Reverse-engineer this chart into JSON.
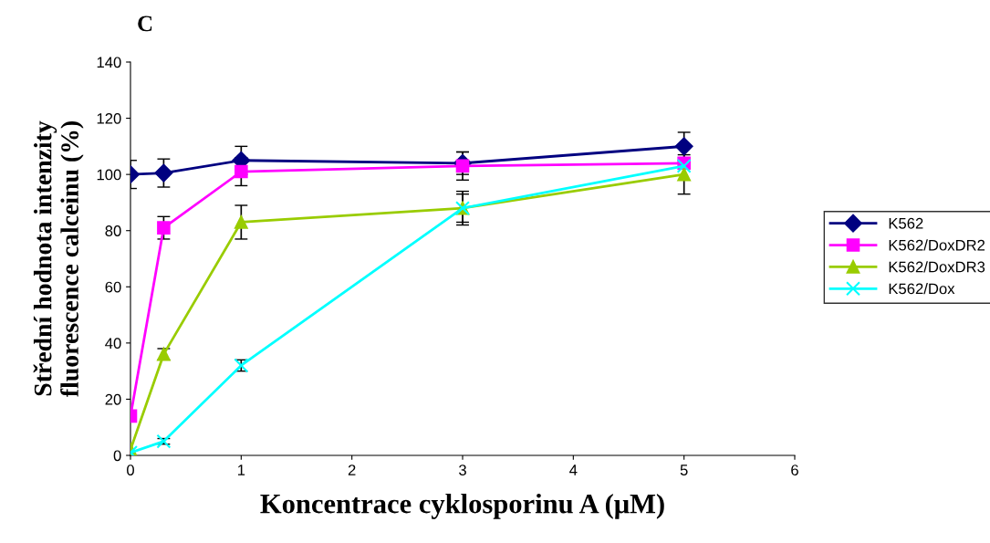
{
  "chart_data": {
    "type": "line",
    "title": "C",
    "xlabel": "Koncentrace cyklosporinu A (μM)",
    "ylabel": "Střední hodnota intenzity\nfluorescence calceinu (%)",
    "x": [
      0,
      0.3,
      1,
      3,
      5
    ],
    "series": [
      {
        "name": "K562",
        "color": "#000080",
        "marker": "diamond",
        "values": [
          100,
          100.5,
          105,
          104,
          110
        ],
        "errors": [
          5,
          5,
          5,
          4,
          5
        ]
      },
      {
        "name": "K562/DoxDR2",
        "color": "#ff00ff",
        "marker": "square",
        "values": [
          14,
          81,
          101,
          103,
          104
        ],
        "errors": [
          null,
          4,
          5,
          5,
          null
        ]
      },
      {
        "name": "K562/DoxDR3",
        "color": "#99cc00",
        "marker": "triangle",
        "values": [
          2,
          36,
          83,
          88,
          100
        ],
        "errors": [
          null,
          2,
          6,
          6,
          7
        ]
      },
      {
        "name": "K562/Dox",
        "color": "#00ffff",
        "marker": "cross",
        "values": [
          1,
          5,
          32,
          88,
          103
        ],
        "errors": [
          null,
          1,
          2,
          5,
          null
        ]
      }
    ],
    "xlim": [
      0,
      6
    ],
    "xticks": [
      0,
      1,
      2,
      3,
      4,
      5,
      6
    ],
    "ylim": [
      0,
      140
    ],
    "yticks": [
      0,
      20,
      40,
      60,
      80,
      100,
      120,
      140
    ],
    "grid": false,
    "legend": "right",
    "line_style": "solid"
  }
}
